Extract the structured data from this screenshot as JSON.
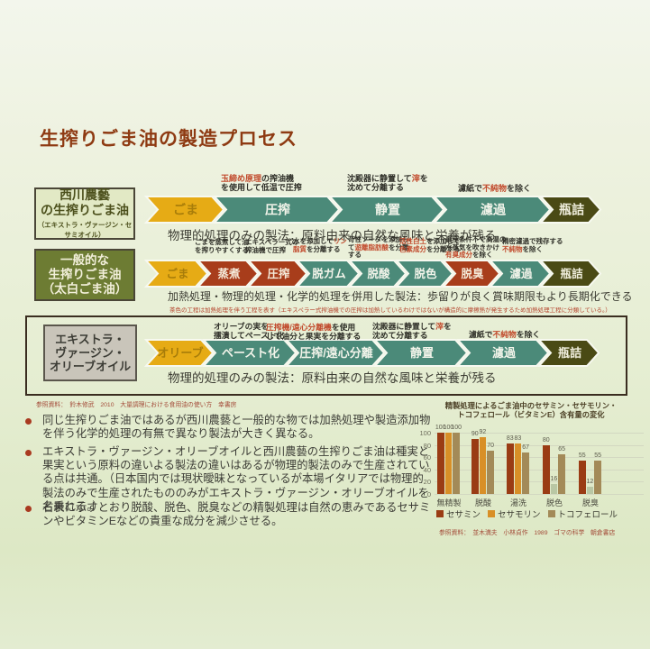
{
  "title": "生搾りごま油の製造プロセス",
  "arrow_colors": {
    "raw": {
      "bg": "#e6ab15",
      "text": "#a87d0a"
    },
    "phys": {
      "bg": "#4b8a79",
      "text": "#f2f4ea"
    },
    "heat": {
      "bg": "#a83d1b",
      "text": "#f4ead9"
    },
    "bottle": {
      "bg": "#4a4a15",
      "text": "#f0eedd"
    }
  },
  "annotation_red_color": "#c14a2c",
  "rows": [
    {
      "label_lines": [
        "西川農藝",
        "の生搾りごま油"
      ],
      "label_sub": "（エキストラ・ヴァージン・セサミオイル）",
      "steps": [
        {
          "label": "ごま",
          "kind": "raw"
        },
        {
          "label": "圧搾",
          "kind": "phys"
        },
        {
          "label": "静置",
          "kind": "phys"
        },
        {
          "label": "濾過",
          "kind": "phys"
        },
        {
          "label": "瓶詰",
          "kind": "bottle"
        }
      ],
      "annotations": [
        {
          "lines": [
            [
              {
                "t": "玉締め原理",
                "r": 1
              },
              {
                "t": "の搾油機",
                "r": 0
              }
            ],
            [
              {
                "t": "を使用して低温で圧搾",
                "r": 0
              }
            ]
          ]
        },
        {
          "lines": [
            [
              {
                "t": "沈殿器に静置して",
                "r": 0
              },
              {
                "t": "滓",
                "r": 1
              },
              {
                "t": "を",
                "r": 0
              }
            ],
            [
              {
                "t": "沈めて分離する",
                "r": 0
              }
            ]
          ]
        },
        {
          "lines": [
            [
              {
                "t": "濾紙で",
                "r": 0
              },
              {
                "t": "不純物",
                "r": 1
              },
              {
                "t": "を除く",
                "r": 0
              }
            ]
          ]
        }
      ],
      "description": "物理的処理のみの製法：原料由来の自然な風味と栄養が残る"
    },
    {
      "label_lines": [
        "一般的な",
        "生搾りごま油",
        "（太白ごま油）"
      ],
      "label_sub": "",
      "steps": [
        {
          "label": "ごま",
          "kind": "raw"
        },
        {
          "label": "蒸煮",
          "kind": "heat"
        },
        {
          "label": "圧搾",
          "kind": "heat"
        },
        {
          "label": "脱ガム",
          "kind": "phys"
        },
        {
          "label": "脱酸",
          "kind": "phys"
        },
        {
          "label": "脱色",
          "kind": "phys"
        },
        {
          "label": "脱臭",
          "kind": "heat"
        },
        {
          "label": "濾過",
          "kind": "phys"
        },
        {
          "label": "瓶詰",
          "kind": "bottle"
        }
      ],
      "annotations": [
        {
          "lines": [
            [
              {
                "t": "ごまを蒸煮して油",
                "r": 0
              }
            ],
            [
              {
                "t": "を搾りやすくする",
                "r": 0
              }
            ]
          ]
        },
        {
          "lines": [
            [
              {
                "t": "エキスペラー式の",
                "r": 0
              }
            ],
            [
              {
                "t": "搾油機で圧搾",
                "r": 0
              }
            ]
          ]
        },
        {
          "lines": [
            [
              {
                "t": "水を添加して",
                "r": 0
              },
              {
                "t": "リン",
                "r": 1
              }
            ],
            [
              {
                "t": "脂質",
                "r": 1
              },
              {
                "t": "を分離する",
                "r": 0
              }
            ]
          ]
        },
        {
          "lines": [
            [
              {
                "t": "苛性ソーダを添加し",
                "r": 0
              }
            ],
            [
              {
                "t": "て",
                "r": 0
              },
              {
                "t": "遊離脂肪酸",
                "r": 1
              },
              {
                "t": "を分離",
                "r": 0
              }
            ],
            [
              {
                "t": "する",
                "r": 0
              }
            ]
          ]
        },
        {
          "lines": [
            [
              {
                "t": "活性白土",
                "r": 1
              },
              {
                "t": "を添加して",
                "r": 0
              }
            ],
            [
              {
                "t": "色素成分",
                "r": 1
              },
              {
                "t": "を分離する",
                "r": 0
              }
            ]
          ]
        },
        {
          "lines": [
            [
              {
                "t": "真空条件下で高温の",
                "r": 0
              }
            ],
            [
              {
                "t": "水蒸気を吹きかけ",
                "r": 0
              }
            ],
            [
              {
                "t": "有臭成分",
                "r": 1
              },
              {
                "t": "を除く",
                "r": 0
              }
            ]
          ]
        },
        {
          "lines": [
            [
              {
                "t": "精密濾過で残存する",
                "r": 0
              }
            ],
            [
              {
                "t": "不純物",
                "r": 1
              },
              {
                "t": "を除く",
                "r": 0
              }
            ]
          ]
        }
      ],
      "description": "加熱処理・物理的処理・化学的処理を併用した製法：歩留りが良く賞味期限もより長期化できる",
      "note": "茶色の工程は加熱処理を伴う工程を表す（エキスペラー式搾油機での圧搾は加熱しているわけではないが構造的に摩擦熱が発生するため加熱処理工程に分類している。）"
    },
    {
      "label_lines": [
        "エキストラ・",
        "ヴァージン・",
        "オリーブオイル"
      ],
      "label_sub": "",
      "steps": [
        {
          "label": "オリーブ",
          "kind": "raw"
        },
        {
          "label": "ペースト化",
          "kind": "phys"
        },
        {
          "label": "圧搾/遠心分離",
          "kind": "phys"
        },
        {
          "label": "静置",
          "kind": "phys"
        },
        {
          "label": "濾過",
          "kind": "phys"
        },
        {
          "label": "瓶詰",
          "kind": "bottle"
        }
      ],
      "annotations": [
        {
          "lines": [
            [
              {
                "t": "オリーブの実を",
                "r": 0
              }
            ],
            [
              {
                "t": "擂潰してペースト化",
                "r": 0
              }
            ]
          ]
        },
        {
          "lines": [
            [
              {
                "t": "圧搾機/遠心分離機",
                "r": 1
              },
              {
                "t": "を使用",
                "r": 0
              }
            ],
            [
              {
                "t": "して油分と果実を分離する",
                "r": 0
              }
            ]
          ]
        },
        {
          "lines": [
            [
              {
                "t": "沈殿器に静置して",
                "r": 0
              },
              {
                "t": "滓",
                "r": 1
              },
              {
                "t": "を",
                "r": 0
              }
            ],
            [
              {
                "t": "沈めて分離する",
                "r": 0
              }
            ]
          ]
        },
        {
          "lines": [
            [
              {
                "t": "濾紙で",
                "r": 0
              },
              {
                "t": "不純物",
                "r": 1
              },
              {
                "t": "を除く",
                "r": 0
              }
            ]
          ]
        }
      ],
      "description": "物理的処理のみの製法：原料由来の自然な風味と栄養が残る"
    }
  ],
  "references": {
    "process": "参照資料：　鈴木修武　2010　大量調理における食用油の使い方　幸書房",
    "chart": "参照資料：　並木満夫　小林貞作　1989　ゴマの科学　朝倉書店"
  },
  "bullets": [
    "同じ生搾りごま油ではあるが西川農藝と一般的な物では加熱処理や製造添加物を伴う化学的処理の有無で異なり製法が大きく異なる。",
    "エキストラ・ヴァージン・オリーブオイルと西川農藝の生搾りごま油は種実と果実という原料の違いよる製法の違いはあるが物理的製法のみで生産されている点は共通。（日本国内では現状曖昧となっているが本場イタリアでは物理的製法のみで生産されたもののみがエキストラ・ヴァージン・オリーブオイルを名乗れる。）",
    "右表に示すとおり脱酸、脱色、脱臭などの精製処理は自然の恵みであるセサミンやビタミンEなどの貴重な成分を減少させる。"
  ],
  "chart_data": {
    "type": "bar",
    "title": "精製処理によるごま油中のセサミン・セサモリン・トコフェロール（ビタミンE）含有量の変化",
    "title_lines": [
      "精製処理によるごま油中のセサミン・セサモリン・",
      "トコフェロール（ビタミンE）含有量の変化"
    ],
    "categories": [
      "無精製",
      "脱酸",
      "湯洗",
      "脱色",
      "脱臭"
    ],
    "series": [
      {
        "name": "セサミン",
        "color": "#9a3c14",
        "values": [
          100,
          90,
          83,
          80,
          55
        ]
      },
      {
        "name": "セサモリン",
        "color": "#d88f27",
        "low_color": "#b9c7a4",
        "values": [
          100,
          92,
          83,
          16,
          12
        ]
      },
      {
        "name": "トコフェロール",
        "color": "#a38a58",
        "values": [
          100,
          70,
          67,
          65,
          55
        ]
      }
    ],
    "ylim": [
      0,
      100
    ],
    "yticks": [
      0,
      20,
      40,
      60,
      80,
      100
    ],
    "grid": true,
    "legend_position": "bottom"
  }
}
